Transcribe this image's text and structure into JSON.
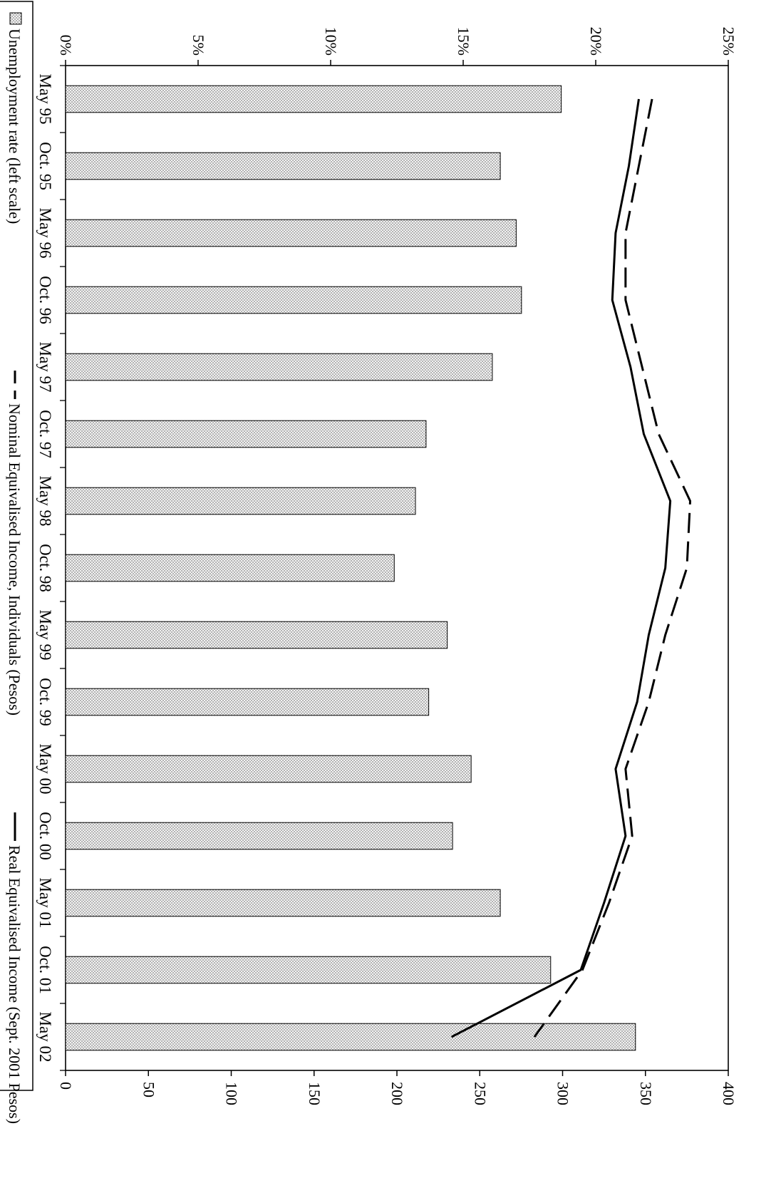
{
  "chart_data": {
    "type": "bar",
    "title": "",
    "xlabel": "",
    "categories": [
      "May 95",
      "Oct. 95",
      "May 96",
      "Oct. 96",
      "May 97",
      "Oct. 97",
      "May 98",
      "Oct. 98",
      "May 99",
      "Oct. 99",
      "May 00",
      "Oct. 00",
      "May 01",
      "Oct. 01",
      "May 02"
    ],
    "left_axis": {
      "label": "",
      "ylim": [
        0,
        25
      ],
      "ticks": [
        "0%",
        "5%",
        "10%",
        "15%",
        "20%",
        "25%"
      ]
    },
    "right_axis": {
      "label": "",
      "ylim": [
        0,
        400
      ],
      "ticks": [
        "0",
        "50",
        "100",
        "150",
        "200",
        "250",
        "300",
        "350",
        "400"
      ]
    },
    "series": [
      {
        "name": "Unemployment rate (left scale)",
        "type": "bar",
        "axis": "left",
        "values": [
          18.7,
          16.4,
          17.0,
          17.2,
          16.1,
          13.6,
          13.2,
          12.4,
          14.4,
          13.7,
          15.3,
          14.6,
          16.4,
          18.3,
          21.5
        ],
        "unit": "%"
      },
      {
        "name": "Nominal Equivalised Income, Individuals (Pesos)",
        "type": "line",
        "style": "dashed",
        "axis": "right",
        "values": [
          354,
          346,
          338,
          338,
          348,
          358,
          377,
          375,
          362,
          352,
          338,
          342,
          328,
          312,
          283
        ]
      },
      {
        "name": "Real Equivalised Income (Sept. 2001 Pesos)",
        "type": "line",
        "style": "solid",
        "axis": "right",
        "values": [
          346,
          340,
          332,
          330,
          341,
          349,
          365,
          362,
          352,
          345,
          332,
          338,
          325,
          311,
          233
        ]
      }
    ],
    "legend": {
      "position": "bottom",
      "items": [
        "Unemployment rate (left scale)",
        "Nominal Equivalised Income, Individuals (Pesos)",
        "Real Equivalised Income (Sept. 2001 Pesos)"
      ]
    },
    "grid": false
  }
}
